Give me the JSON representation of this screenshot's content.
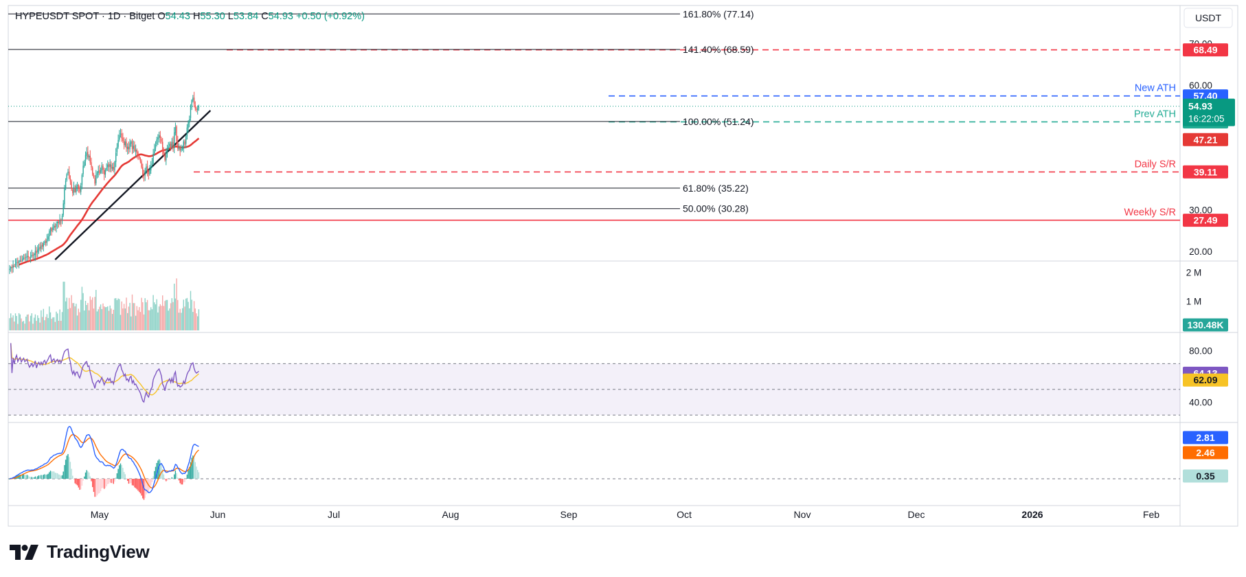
{
  "header": {
    "symbol": "HYPEUSDT SPOT · 1D · Bitget",
    "open_label": "O",
    "open": "54.43",
    "high_label": "H",
    "high": "55.30",
    "low_label": "L",
    "low": "53.84",
    "close_label": "C",
    "close": "54.93",
    "change": "+0.50 (+0.92%)",
    "currency": "USDT"
  },
  "brand": {
    "name": "TradingView"
  },
  "colors": {
    "up": "#26a69a",
    "down": "#ef5350",
    "sma": "#e53935",
    "rsi": "#7e57c2",
    "rsi_ma": "#f7c325",
    "macd": "#2962ff",
    "signal": "#ff6d00"
  },
  "chart_data": [
    {
      "type": "candlestick",
      "title": "HYPEUSDT SPOT · 1D · Bitget",
      "x_ticks": [
        "May",
        "Jun",
        "Jul",
        "Aug",
        "Sep",
        "Oct",
        "Nov",
        "Dec",
        "2026",
        "Feb"
      ],
      "y_ticks": [
        "20.00",
        "30.00",
        "60.00",
        "70.00"
      ],
      "ylim": [
        18,
        79
      ],
      "last_price": {
        "label": "54.93",
        "countdown": "16:22:05"
      },
      "sma_last": "47.21",
      "fib_levels": [
        {
          "label": "161.80% (77.14)",
          "value": 77.14
        },
        {
          "label": "141.40% (68.59)",
          "value": 68.59
        },
        {
          "label": "100.00% (51.24)",
          "value": 51.24
        },
        {
          "label": "61.80% (35.22)",
          "value": 35.22
        },
        {
          "label": "50.00% (30.28)",
          "value": 30.28
        }
      ],
      "levels": [
        {
          "name": "",
          "value": 68.49,
          "label": "68.49",
          "color": "#f23645",
          "style": "dashed"
        },
        {
          "name": "New ATH",
          "value": 57.4,
          "label": "57.40",
          "color": "#2962ff",
          "style": "dashed"
        },
        {
          "name": "Prev ATH",
          "value": 51.15,
          "label": "51.15",
          "color": "#22ab94",
          "style": "dashed"
        },
        {
          "name": "Daily S/R",
          "value": 39.11,
          "label": "39.11",
          "color": "#f23645",
          "style": "dashed"
        },
        {
          "name": "Weekly S/R",
          "value": 27.49,
          "label": "27.49",
          "color": "#f23645",
          "style": "solid"
        }
      ],
      "trendline": {
        "from": [
          "2025-05-16",
          18.0
        ],
        "to": [
          "2025-09-26",
          53.9
        ]
      },
      "dates_start": "2025-04-07",
      "series": [
        {
          "name": "price",
          "closes": [
            15.8,
            16.2,
            16.0,
            16.6,
            16.5,
            17.0,
            17.4,
            17.2,
            17.6,
            17.9,
            17.7,
            18.1,
            18.5,
            18.3,
            18.6,
            18.9,
            18.6,
            18.4,
            18.7,
            19.1,
            18.9,
            19.3,
            20.1,
            19.6,
            20.4,
            20.9,
            20.7,
            21.4,
            21.2,
            22.0,
            22.4,
            22.1,
            22.9,
            23.6,
            24.8,
            25.6,
            24.9,
            25.7,
            26.2,
            25.8,
            26.6,
            27.1,
            26.8,
            27.6,
            27.3,
            28.6,
            31.5,
            35.2,
            37.0,
            38.6,
            39.2,
            37.6,
            36.8,
            35.0,
            34.0,
            35.4,
            34.3,
            35.8,
            35.9,
            35.0,
            34.4,
            35.8,
            38.4,
            40.6,
            41.6,
            43.2,
            43.8,
            42.6,
            43.0,
            41.4,
            40.2,
            38.5,
            37.8,
            36.3,
            38.4,
            39.0,
            39.4,
            38.7,
            39.6,
            40.7,
            39.6,
            38.5,
            39.5,
            40.1,
            40.9,
            40.3,
            41.0,
            39.9,
            40.3,
            39.6,
            41.6,
            43.7,
            45.1,
            46.8,
            48.0,
            48.4,
            47.2,
            46.6,
            45.6,
            46.4,
            44.8,
            45.2,
            44.5,
            46.0,
            46.4,
            44.6,
            45.4,
            44.2,
            44.4,
            43.7,
            43.0,
            42.4,
            41.6,
            40.2,
            38.6,
            38.1,
            39.4,
            40.4,
            39.2,
            38.6,
            39.6,
            40.6,
            41.1,
            43.5,
            44.7,
            45.6,
            46.9,
            47.4,
            48.0,
            47.3,
            46.4,
            44.2,
            43.5,
            42.0,
            43.7,
            44.8,
            45.2,
            45.9,
            44.9,
            46.4,
            45.0,
            48.6,
            49.9,
            46.6,
            44.7,
            45.1,
            44.3,
            44.6,
            45.0,
            46.5,
            45.7,
            47.7,
            49.8,
            51.1,
            51.9,
            54.7,
            56.4,
            57.0,
            55.4,
            54.4,
            54.0,
            54.4,
            54.9
          ]
        },
        {
          "name": "SMA",
          "last": 47.21
        },
        {
          "name": "Volume",
          "last": "130.48K",
          "y_ticks": [
            "1 M",
            "2 M"
          ]
        },
        {
          "name": "RSI",
          "last": "64.13",
          "levels": [
            70,
            50,
            30
          ],
          "y_ticks": [
            "40.00",
            "80.00"
          ]
        },
        {
          "name": "RSI MA",
          "last": "62.09"
        },
        {
          "name": "MACD",
          "last": "2.81"
        },
        {
          "name": "Signal",
          "last": "2.46"
        },
        {
          "name": "Histogram",
          "last": "0.35"
        }
      ]
    }
  ]
}
